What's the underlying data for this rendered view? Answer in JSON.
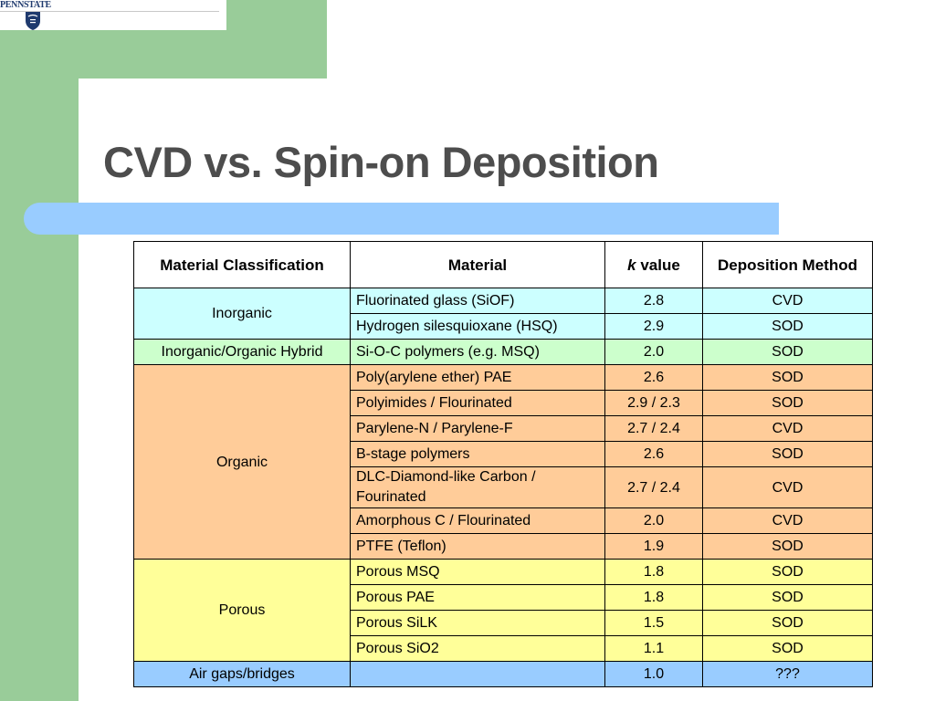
{
  "logo": {
    "text": "PENNSTATE",
    "shield_icon": "penn-state-shield-icon",
    "brand_color": "#1f3a6e"
  },
  "slide": {
    "title": "CVD vs. Spin-on Deposition"
  },
  "colors": {
    "band_green": "#99cc99",
    "title_bar_blue": "#99ccff",
    "title_text": "#4d4d4d",
    "inorganic": "#ccffff",
    "hybrid": "#ccffcc",
    "organic": "#ffcc99",
    "porous": "#ffff99",
    "air": "#99ccff"
  },
  "table": {
    "headers": {
      "classification": "Material Classification",
      "material": "Material",
      "k_symbol": "k",
      "k_rest": " value",
      "method": "Deposition Method"
    },
    "groups": [
      {
        "classification": "Inorganic",
        "rows": [
          {
            "material": "Fluorinated glass (SiOF)",
            "k": "2.8",
            "method": "CVD"
          },
          {
            "material": "Hydrogen silesquioxane (HSQ)",
            "k": "2.9",
            "method": "SOD"
          }
        ]
      },
      {
        "classification": "Inorganic/Organic Hybrid",
        "rows": [
          {
            "material": "Si-O-C polymers (e.g. MSQ)",
            "k": "2.0",
            "method": "SOD"
          }
        ]
      },
      {
        "classification": "Organic",
        "rows": [
          {
            "material": "Poly(arylene ether) PAE",
            "k": "2.6",
            "method": "SOD"
          },
          {
            "material": "Polyimides / Flourinated",
            "k": "2.9 / 2.3",
            "method": "SOD"
          },
          {
            "material": "Parylene-N / Parylene-F",
            "k": "2.7 / 2.4",
            "method": "CVD"
          },
          {
            "material": "B-stage polymers",
            "k": "2.6",
            "method": "SOD"
          },
          {
            "material": "DLC-Diamond-like Carbon / Fourinated",
            "k": "2.7 / 2.4",
            "method": "CVD"
          },
          {
            "material": "Amorphous C / Flourinated",
            "k": "2.0",
            "method": "CVD"
          },
          {
            "material": "PTFE (Teflon)",
            "k": "1.9",
            "method": "SOD"
          }
        ]
      },
      {
        "classification": "Porous",
        "rows": [
          {
            "material": "Porous MSQ",
            "k": "1.8",
            "method": "SOD"
          },
          {
            "material": "Porous PAE",
            "k": "1.8",
            "method": "SOD"
          },
          {
            "material": "Porous SiLK",
            "k": "1.5",
            "method": "SOD"
          },
          {
            "material": "Porous SiO2",
            "k": "1.1",
            "method": "SOD"
          }
        ]
      },
      {
        "classification": "Air gaps/bridges",
        "rows": [
          {
            "material": "",
            "k": "1.0",
            "method": "???"
          }
        ]
      }
    ]
  }
}
